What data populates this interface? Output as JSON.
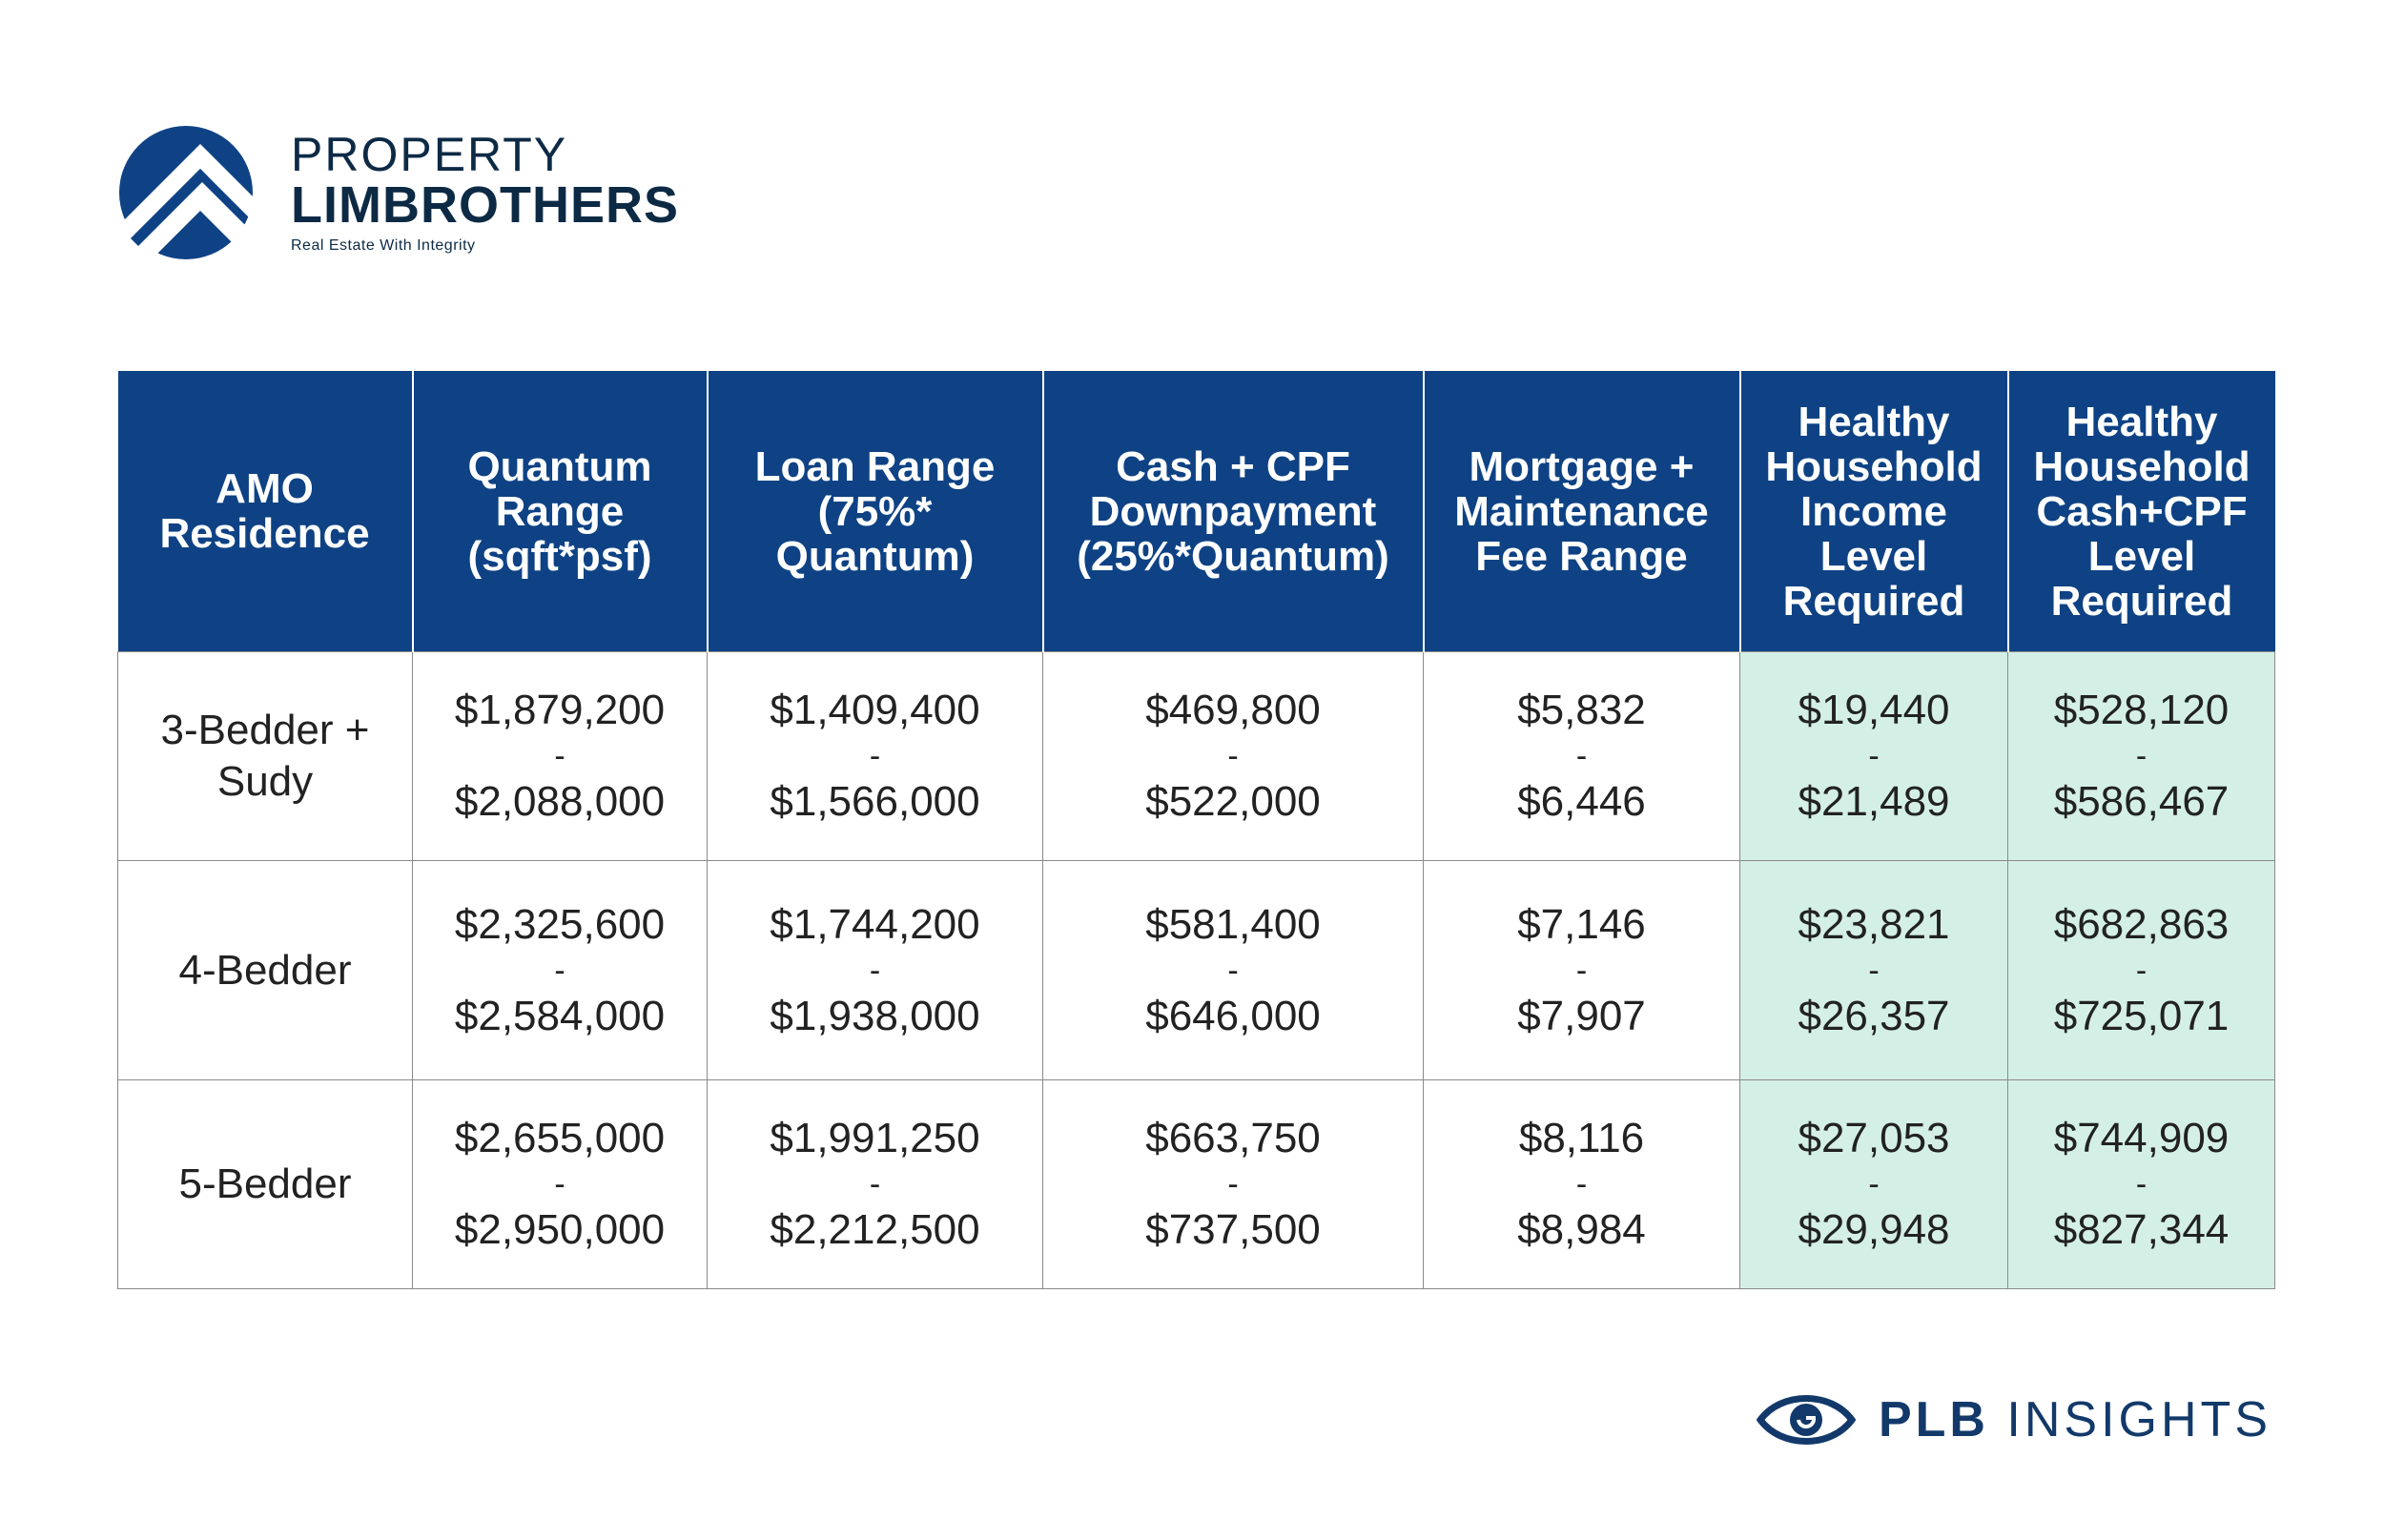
{
  "logo": {
    "line1": "PROPERTY",
    "line2": "LIMBROTHERS",
    "tagline": "Real Estate With Integrity",
    "mark_icon": "house-roof-circle-icon",
    "color": "#0e4284"
  },
  "table": {
    "headers": [
      "AMO Residence",
      "Quantum Range (sqft*psf)",
      "Loan Range (75%* Quantum)",
      "Cash + CPF Downpayment (25%*Quantum)",
      "Mortgage + Maintenance Fee Range",
      "Healthy Household Income Level Required",
      "Healthy Household Cash+CPF Level Required"
    ],
    "rows": [
      {
        "type": "3-Bedder + Sudy",
        "quantum": {
          "low": "$1,879,200",
          "high": "$2,088,000"
        },
        "loan": {
          "low": "$1,409,400",
          "high": "$1,566,000"
        },
        "downpayment": {
          "low": "$469,800",
          "high": "$522,000"
        },
        "mortgage": {
          "low": "$5,832",
          "high": "$6,446"
        },
        "income": {
          "low": "$19,440",
          "high": "$21,489"
        },
        "cashcpf": {
          "low": "$528,120",
          "high": "$586,467"
        }
      },
      {
        "type": "4-Bedder",
        "quantum": {
          "low": "$2,325,600",
          "high": "$2,584,000"
        },
        "loan": {
          "low": "$1,744,200",
          "high": "$1,938,000"
        },
        "downpayment": {
          "low": "$581,400",
          "high": "$646,000"
        },
        "mortgage": {
          "low": "$7,146",
          "high": "$7,907"
        },
        "income": {
          "low": "$23,821",
          "high": "$26,357"
        },
        "cashcpf": {
          "low": "$682,863",
          "high": "$725,071"
        }
      },
      {
        "type": "5-Bedder",
        "quantum": {
          "low": "$2,655,000",
          "high": "$2,950,000"
        },
        "loan": {
          "low": "$1,991,250",
          "high": "$2,212,500"
        },
        "downpayment": {
          "low": "$663,750",
          "high": "$737,500"
        },
        "mortgage": {
          "low": "$8,116",
          "high": "$8,984"
        },
        "income": {
          "low": "$27,053",
          "high": "$29,948"
        },
        "cashcpf": {
          "low": "$744,909",
          "high": "$827,344"
        }
      }
    ],
    "separator": "-",
    "header_color": "#0e4284",
    "highlight_color": "#d4f0e6"
  },
  "brand": {
    "bold": "PLB",
    "rest": "INSIGHTS",
    "icon": "eye-icon"
  }
}
